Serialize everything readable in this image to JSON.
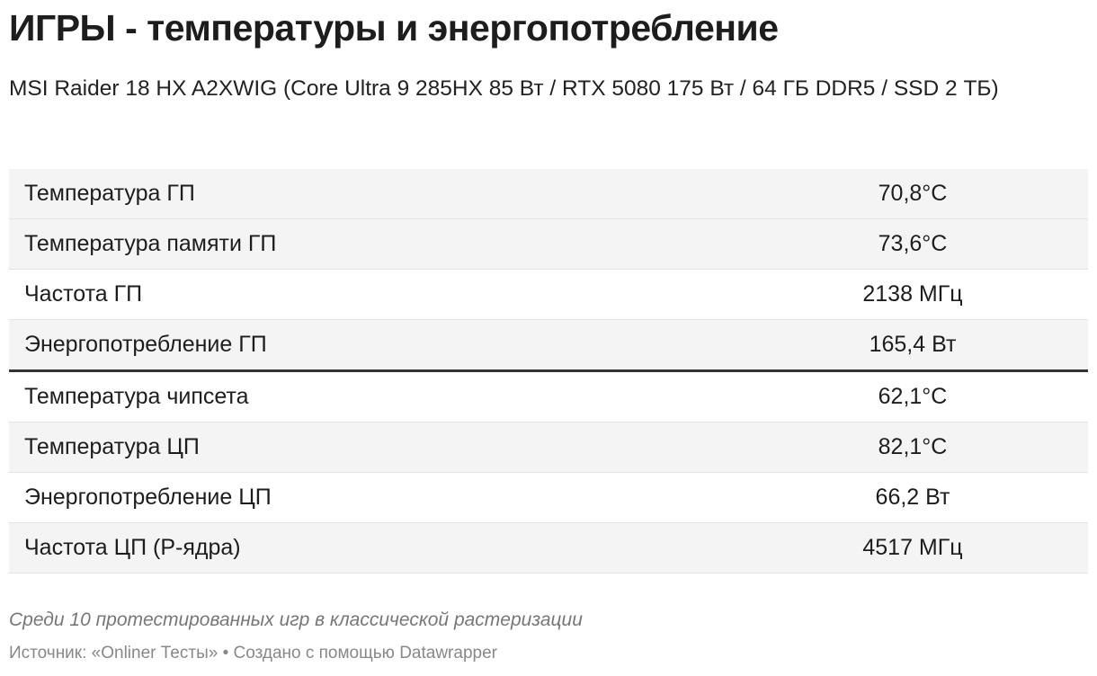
{
  "header": {
    "title": "ИГРЫ - температуры и энергопотребление",
    "subtitle": "MSI Raider 18 HX A2XWIG (Core Ultra 9 285HX 85 Вт / RTX 5080 175 Вт / 64 ГБ DDR5 / SSD 2 ТБ)"
  },
  "table": {
    "rows": [
      [
        "Температура ГП",
        "70,8°C"
      ],
      [
        "Температура памяти ГП",
        "73,6°C"
      ],
      [
        "Частота ГП",
        "2138 МГц"
      ],
      [
        "Энергопотребление ГП",
        "165,4 Вт"
      ],
      [
        "Температура чипсета",
        "62,1°C"
      ],
      [
        "Температура ЦП",
        "82,1°C"
      ],
      [
        "Энергопотребление ЦП",
        "66,2 Вт"
      ],
      [
        "Частота ЦП (P-ядра)",
        "4517 МГц"
      ]
    ]
  },
  "notes": "Среди 10 протестированных игр в классической растеризации",
  "footer": "Источник: «Onliner Тесты» • Создано с помощью Datawrapper"
}
